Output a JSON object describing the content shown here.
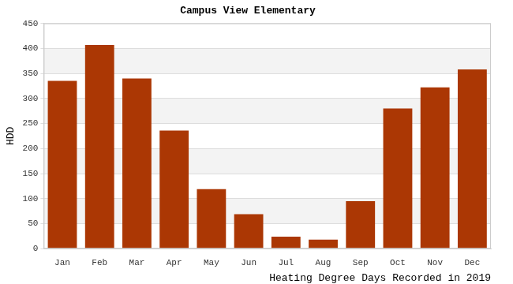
{
  "chart_data": {
    "type": "bar",
    "title": "Campus View Elementary",
    "x_label": "Heating Degree Days Recorded in 2019",
    "y_label": "HDD",
    "categories": [
      "Jan",
      "Feb",
      "Mar",
      "Apr",
      "May",
      "Jun",
      "Jul",
      "Aug",
      "Sep",
      "Oct",
      "Nov",
      "Dec"
    ],
    "values": [
      335,
      407,
      340,
      236,
      119,
      69,
      24,
      18,
      95,
      280,
      322,
      358
    ],
    "color": "#ab3704",
    "ylim": [
      0,
      450
    ],
    "yticks": [
      0,
      50,
      100,
      150,
      200,
      250,
      300,
      350,
      400,
      450
    ],
    "grid": true
  }
}
